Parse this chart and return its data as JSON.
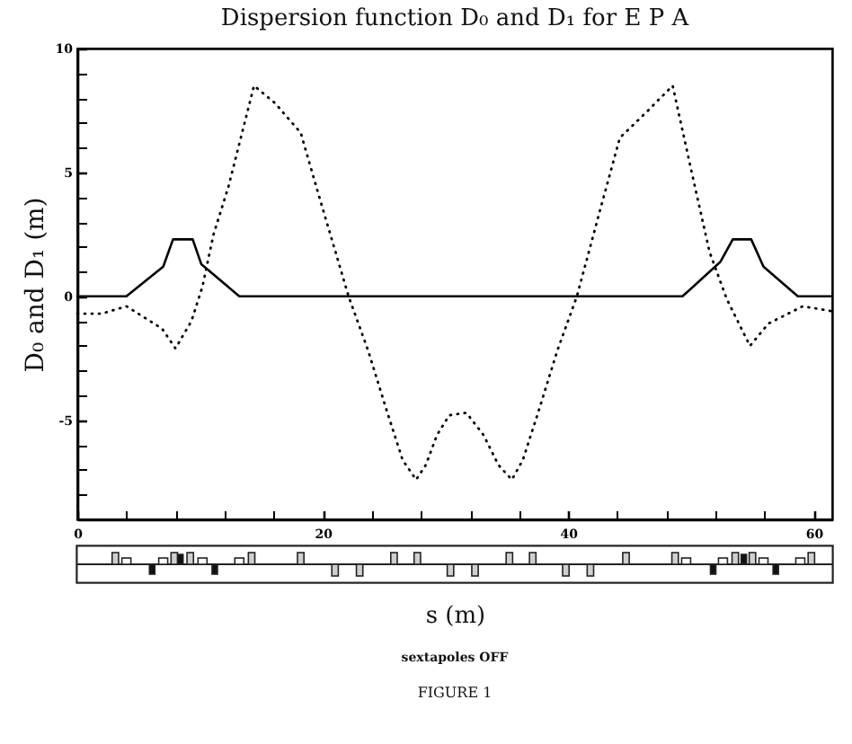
{
  "chart_data": {
    "type": "line",
    "title": "Dispersion function D₀ and D₁ for E P A",
    "xlabel": "s (m)",
    "ylabel": "D₀ and D₁ (m)",
    "annotations": [
      "sextapoles OFF",
      "FIGURE 1"
    ],
    "series": [
      {
        "color": "#000000",
        "line_style": "solid",
        "x": [
          0,
          4.0,
          7.0,
          7.8,
          9.4,
          10.1,
          13.2,
          49.3,
          52.4,
          53.4,
          54.9,
          55.9,
          58.7,
          61.5
        ],
        "values": [
          0,
          0,
          1.2,
          2.3,
          2.3,
          1.3,
          0,
          0,
          1.4,
          2.3,
          2.3,
          1.2,
          0,
          0
        ]
      },
      {
        "color": "#000000",
        "line_style": "dotted",
        "x": [
          0,
          2.0,
          4.0,
          6.9,
          8.0,
          9.3,
          10.2,
          11.1,
          12.3,
          14.4,
          16.1,
          18.2,
          19.6,
          22.1,
          23.7,
          25.2,
          26.5,
          27.6,
          28.4,
          29.3,
          30.3,
          31.7,
          33.1,
          34.3,
          35.4,
          36.3,
          37.6,
          39.1,
          40.7,
          42.6,
          44.2,
          46.3,
          48.5,
          50.1,
          51.5,
          52.9,
          54.8,
          56.3,
          59.1,
          61.5
        ],
        "values": [
          -0.7,
          -0.7,
          -0.4,
          -1.3,
          -2.1,
          -1.0,
          0.4,
          2.5,
          4.4,
          8.5,
          7.8,
          6.6,
          4.2,
          0.0,
          -2.2,
          -4.6,
          -6.6,
          -7.4,
          -6.8,
          -5.6,
          -4.8,
          -4.7,
          -5.6,
          -6.8,
          -7.4,
          -6.6,
          -4.6,
          -2.2,
          0.0,
          3.5,
          6.4,
          7.4,
          8.5,
          4.9,
          1.8,
          -0.1,
          -2.0,
          -1.1,
          -0.4,
          -0.6
        ]
      }
    ],
    "xlim": [
      0,
      61.5
    ],
    "ylim": [
      -9,
      10
    ],
    "xticks": [
      0,
      {
        "value": 4,
        "label": null
      },
      {
        "value": 8,
        "label": null
      },
      {
        "value": 12,
        "label": null
      },
      {
        "value": 16,
        "label": null
      },
      20,
      {
        "value": 24,
        "label": null
      },
      {
        "value": 28,
        "label": null
      },
      {
        "value": 32,
        "label": null
      },
      {
        "value": 36,
        "label": null
      },
      40,
      {
        "value": 44,
        "label": null
      },
      {
        "value": 48,
        "label": null
      },
      {
        "value": 52,
        "label": null
      },
      {
        "value": 56,
        "label": null
      },
      60
    ],
    "yticks": [
      {
        "value": -8,
        "label": null
      },
      {
        "value": -7,
        "label": null
      },
      {
        "value": -6,
        "label": null
      },
      -5,
      {
        "value": -4,
        "label": null
      },
      {
        "value": -3,
        "label": null
      },
      {
        "value": -2,
        "label": null
      },
      {
        "value": -1,
        "label": null
      },
      0,
      {
        "value": 1,
        "label": null
      },
      {
        "value": 2,
        "label": null
      },
      {
        "value": 3,
        "label": null
      },
      {
        "value": 4,
        "label": null
      },
      5,
      {
        "value": 6,
        "label": null
      },
      {
        "value": 7,
        "label": null
      },
      {
        "value": 8,
        "label": null
      },
      {
        "value": 9,
        "label": null
      },
      10
    ],
    "grid": false
  }
}
